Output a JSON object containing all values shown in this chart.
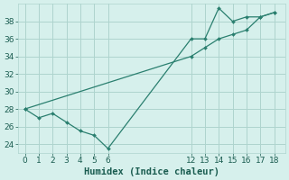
{
  "line1_x": [
    0,
    1,
    2,
    3,
    4,
    5,
    6,
    12,
    13,
    14,
    15,
    16,
    17,
    18
  ],
  "line1_y": [
    28,
    27,
    27.5,
    26.5,
    25.5,
    25,
    23.5,
    36,
    36,
    39.5,
    38,
    38.5,
    38.5,
    39
  ],
  "line2_x": [
    0,
    12,
    13,
    14,
    15,
    16,
    17,
    18
  ],
  "line2_y": [
    28,
    34,
    35,
    36,
    36.5,
    37,
    38.5,
    39
  ],
  "line_color": "#2a7f6f",
  "bg_color": "#d6f0ec",
  "grid_color": "#aed4ce",
  "xlabel": "Humidex (Indice chaleur)",
  "xlim": [
    -0.5,
    18.8
  ],
  "ylim": [
    23.0,
    40.0
  ],
  "yticks": [
    24,
    26,
    28,
    30,
    32,
    34,
    36,
    38
  ],
  "xticks": [
    0,
    1,
    2,
    3,
    4,
    5,
    6,
    12,
    13,
    14,
    15,
    16,
    17,
    18
  ],
  "tick_color": "#1a5c50",
  "label_color": "#1a5c50",
  "font_size": 6.5,
  "xlabel_fontsize": 7.5
}
